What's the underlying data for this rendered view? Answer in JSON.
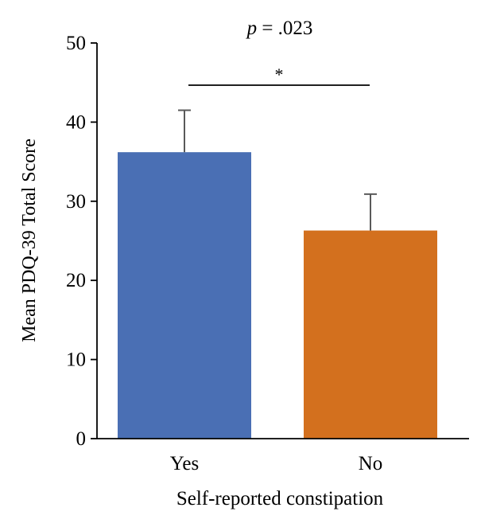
{
  "chart_data": {
    "type": "bar",
    "categories": [
      "Yes",
      "No"
    ],
    "values": [
      36.2,
      26.3
    ],
    "error_upper": [
      41.5,
      30.9
    ],
    "bar_colors": [
      "#4a6fb4",
      "#d3701e"
    ],
    "ylabel": "Mean PDQ-39 Total Score",
    "xlabel": "Self-reported constipation",
    "ylim": [
      0,
      50
    ],
    "yticks": [
      0,
      10,
      20,
      30,
      40,
      50
    ],
    "grid": false,
    "annotation": {
      "p_symbol": "p",
      "p_rest": " = .023",
      "significance_marker": "*"
    }
  }
}
